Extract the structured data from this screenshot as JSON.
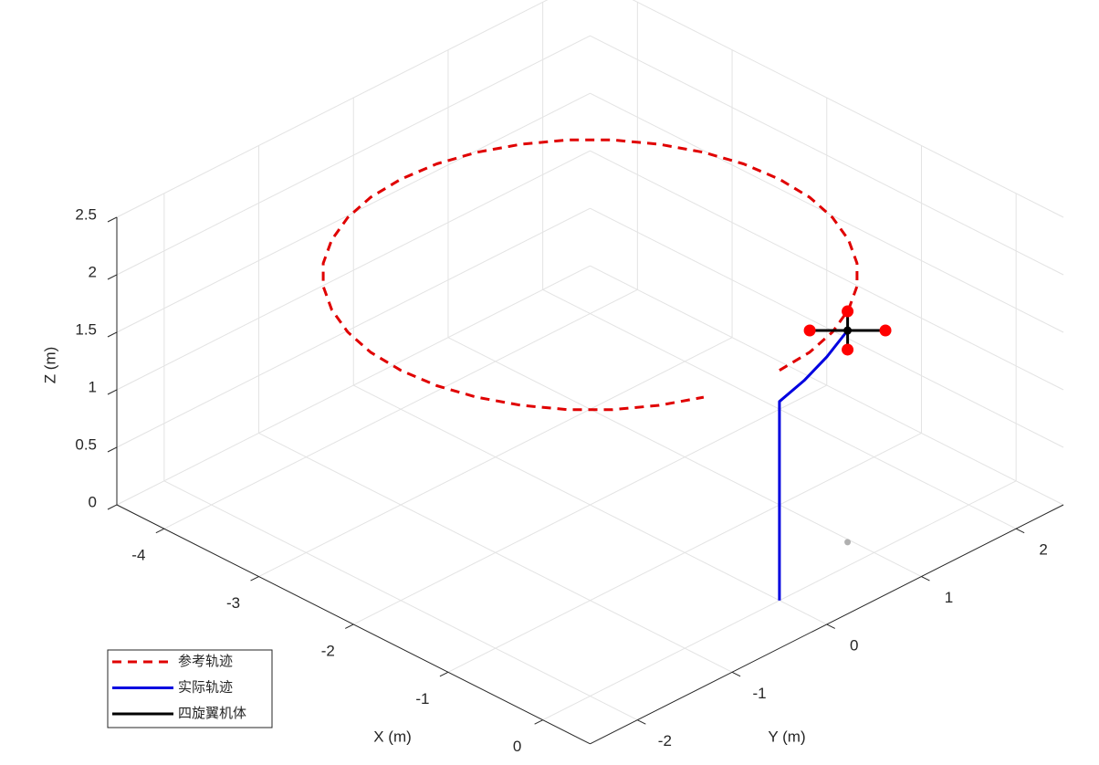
{
  "chart_data": {
    "type": "line3d",
    "xlabel": "X (m)",
    "ylabel": "Y (m)",
    "zlabel": "Z (m)",
    "xlim": [
      -4.5,
      0.5
    ],
    "ylim": [
      -2.5,
      2.5
    ],
    "zlim": [
      0,
      2.5
    ],
    "xticks": [
      -4,
      -3,
      -2,
      -1,
      0
    ],
    "yticks": [
      -2,
      -1,
      0,
      1,
      2
    ],
    "zticks": [
      0,
      0.5,
      1,
      1.5,
      2,
      2.5
    ],
    "grid": true,
    "series": [
      {
        "name": "参考轨迹",
        "color": "#e00000",
        "style": "dashed",
        "x": [
          0,
          -0.03,
          -0.12,
          -0.27,
          -0.47,
          -0.71,
          -1,
          -1.32,
          -1.65,
          -2,
          -2.35,
          -2.68,
          -3,
          -3.29,
          -3.53,
          -3.73,
          -3.88,
          -3.97,
          -4,
          -3.97,
          -3.88,
          -3.73,
          -3.53,
          -3.29,
          -3,
          -2.68,
          -2.35,
          -2,
          -1.65,
          -1.32,
          -1,
          -0.71,
          -0.47,
          -0.27,
          -0.12
        ],
        "y": [
          0,
          0.35,
          0.68,
          1,
          1.29,
          1.53,
          1.73,
          1.88,
          1.97,
          2,
          1.97,
          1.88,
          1.73,
          1.53,
          1.29,
          1,
          0.68,
          0.35,
          0,
          -0.35,
          -0.68,
          -1,
          -1.29,
          -1.53,
          -1.73,
          -1.88,
          -1.97,
          -2,
          -1.97,
          -1.88,
          -1.73,
          -1.53,
          -1.29,
          -1,
          -0.68
        ],
        "z": [
          2,
          2,
          2,
          2,
          2,
          2,
          2,
          2,
          2,
          2,
          2,
          2,
          2,
          2,
          2,
          2,
          2,
          2,
          2,
          2,
          2,
          2,
          2,
          2,
          2,
          2,
          2,
          2,
          2,
          2,
          2,
          2,
          2,
          2,
          2
        ]
      },
      {
        "name": "实际轨迹",
        "color": "#0000e0",
        "style": "solid",
        "x": [
          0,
          0,
          -0.04,
          -0.12,
          -0.25
        ],
        "y": [
          0,
          0,
          0.3,
          0.62,
          0.97
        ],
        "z": [
          0,
          1.73,
          1.77,
          1.81,
          1.84
        ]
      },
      {
        "name": "四旋翼机体",
        "color": "#000000",
        "style": "solid",
        "x": [
          -0.45,
          -0.05,
          null,
          -0.05,
          -0.45
        ],
        "y": [
          0.77,
          1.17,
          null,
          0.77,
          1.17
        ],
        "z": [
          1.84,
          1.84,
          null,
          1.84,
          1.84
        ]
      }
    ],
    "rotors": {
      "color": "#ff0000",
      "x": [
        -0.05,
        -0.45,
        -0.05,
        -0.45
      ],
      "y": [
        1.17,
        0.77,
        0.77,
        1.17
      ],
      "z": [
        1.84,
        1.84,
        1.84,
        1.84
      ]
    },
    "body_center": {
      "color": "#000000",
      "x": -0.25,
      "y": 0.97,
      "z": 1.84
    },
    "ground_point": {
      "color": "#b0b0b0",
      "x": -0.25,
      "y": 0.97,
      "z": 0
    }
  }
}
